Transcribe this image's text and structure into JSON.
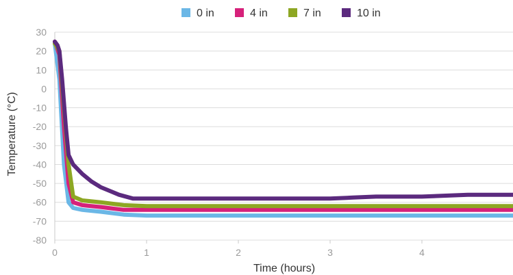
{
  "chart_data": {
    "type": "line",
    "xlabel": "Time (hours)",
    "ylabel": "Temperature (°C)",
    "xlim": [
      0,
      5
    ],
    "ylim": [
      -80,
      30
    ],
    "xticks": [
      0,
      1,
      2,
      3,
      4
    ],
    "yticks": [
      30,
      20,
      10,
      0,
      -10,
      -20,
      -30,
      -40,
      -50,
      -60,
      -70,
      -80
    ],
    "grid": true,
    "legend_position": "top-center",
    "series": [
      {
        "name": "0 in",
        "color": "#6bb7e6",
        "x": [
          0,
          0.05,
          0.1,
          0.15,
          0.2,
          0.3,
          0.5,
          0.75,
          1,
          2,
          3,
          4,
          5
        ],
        "y": [
          24,
          5,
          -40,
          -60,
          -63,
          -64,
          -65,
          -66.5,
          -67,
          -67,
          -67,
          -67,
          -67
        ]
      },
      {
        "name": "4 in",
        "color": "#d6217a",
        "x": [
          0,
          0.05,
          0.1,
          0.15,
          0.2,
          0.3,
          0.5,
          0.75,
          1,
          2,
          3,
          4,
          5
        ],
        "y": [
          25,
          18,
          -20,
          -50,
          -60,
          -61.5,
          -62.5,
          -64,
          -64,
          -64,
          -64,
          -64,
          -64
        ]
      },
      {
        "name": "7 in",
        "color": "#8da723",
        "x": [
          0,
          0.05,
          0.1,
          0.15,
          0.2,
          0.3,
          0.5,
          0.75,
          1,
          2,
          3,
          4,
          5
        ],
        "y": [
          24,
          20,
          -10,
          -40,
          -57,
          -59,
          -60,
          -61.5,
          -62,
          -62,
          -62,
          -62,
          -62
        ]
      },
      {
        "name": "10 in",
        "color": "#5b2a7e",
        "x": [
          0,
          0.03,
          0.05,
          0.08,
          0.12,
          0.15,
          0.2,
          0.3,
          0.4,
          0.5,
          0.6,
          0.7,
          0.85,
          1,
          2,
          3,
          3.25,
          3.5,
          4,
          4.5,
          5
        ],
        "y": [
          25,
          23,
          20,
          5,
          -20,
          -35,
          -40,
          -45,
          -49,
          -52,
          -54,
          -56,
          -58,
          -58,
          -58,
          -58,
          -57.5,
          -57,
          -57,
          -56,
          -56
        ]
      }
    ]
  }
}
